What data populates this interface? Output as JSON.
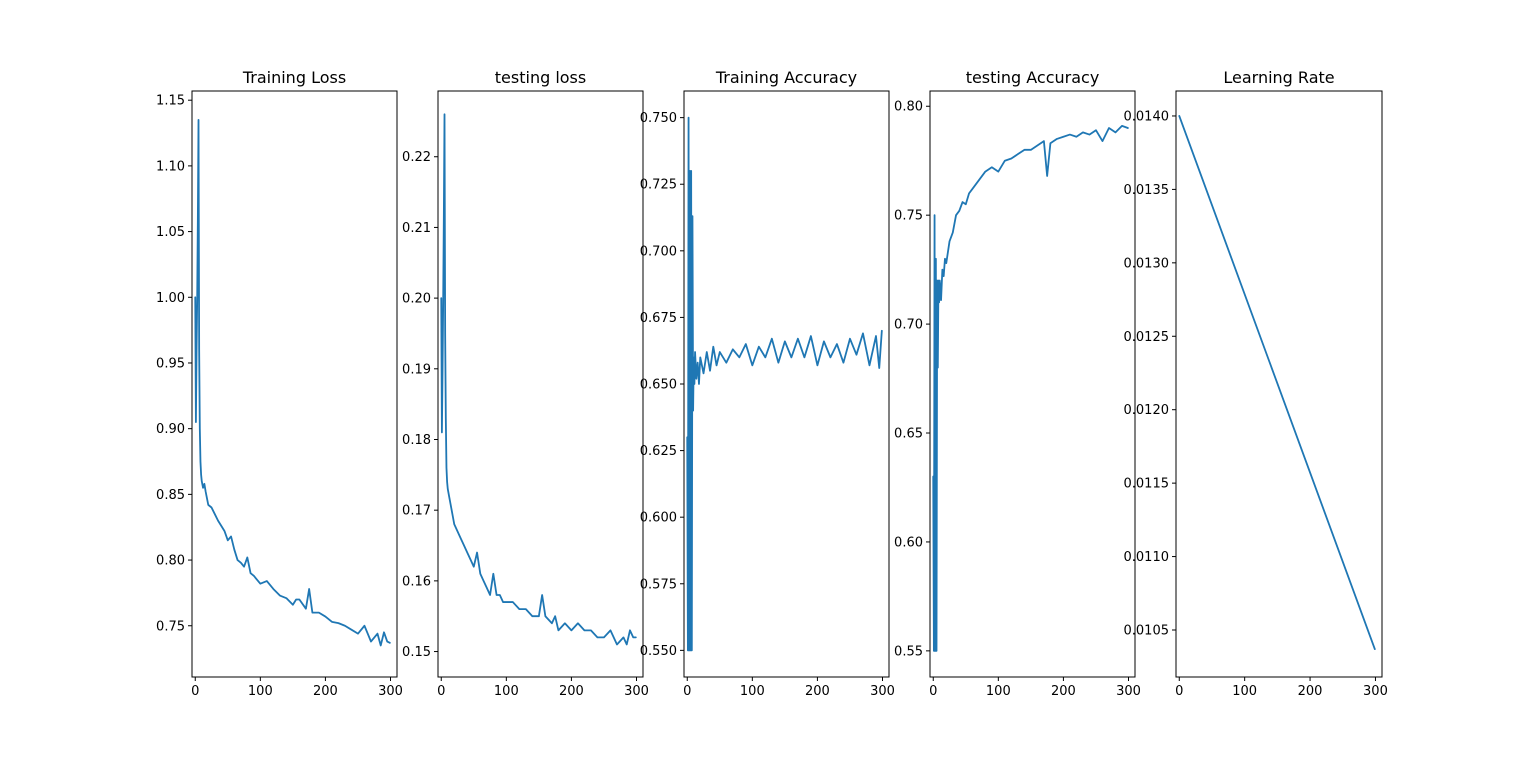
{
  "colors": {
    "series": "#1f77b4",
    "axes": "#000000",
    "background": "#ffffff"
  },
  "chart_data": [
    {
      "type": "line",
      "title": "Training Loss",
      "xlim": [
        -5,
        310
      ],
      "ylim": [
        0.711,
        1.157
      ],
      "xticks": [
        0,
        100,
        200,
        300
      ],
      "xtick_labels": [
        "0",
        "100",
        "200",
        "300"
      ],
      "yticks": [
        0.75,
        0.8,
        0.85,
        0.9,
        0.95,
        1.0,
        1.05,
        1.1,
        1.15
      ],
      "ytick_labels": [
        "0.75",
        "0.80",
        "0.85",
        "0.90",
        "0.95",
        "1.00",
        "1.05",
        "1.10",
        "1.15"
      ],
      "grid": false,
      "x": [
        0,
        1,
        2,
        3,
        4,
        5,
        6,
        7,
        8,
        9,
        10,
        12,
        14,
        16,
        18,
        20,
        25,
        30,
        35,
        40,
        45,
        50,
        55,
        60,
        65,
        70,
        75,
        80,
        85,
        90,
        95,
        100,
        110,
        120,
        130,
        140,
        150,
        155,
        160,
        170,
        175,
        180,
        190,
        200,
        210,
        220,
        230,
        240,
        250,
        260,
        270,
        280,
        285,
        290,
        295,
        299
      ],
      "values": [
        1.0,
        0.905,
        0.96,
        1.0,
        1.06,
        1.135,
        0.96,
        0.9,
        0.875,
        0.865,
        0.86,
        0.855,
        0.858,
        0.852,
        0.847,
        0.842,
        0.84,
        0.835,
        0.83,
        0.826,
        0.822,
        0.815,
        0.818,
        0.808,
        0.8,
        0.798,
        0.795,
        0.802,
        0.79,
        0.788,
        0.785,
        0.782,
        0.784,
        0.778,
        0.773,
        0.771,
        0.766,
        0.77,
        0.77,
        0.763,
        0.778,
        0.76,
        0.76,
        0.757,
        0.753,
        0.752,
        0.75,
        0.747,
        0.744,
        0.75,
        0.738,
        0.744,
        0.735,
        0.745,
        0.738,
        0.737
      ]
    },
    {
      "type": "line",
      "title": "testing loss",
      "xlim": [
        -5,
        310
      ],
      "ylim": [
        0.1464,
        0.2293
      ],
      "xticks": [
        0,
        100,
        200,
        300
      ],
      "xtick_labels": [
        "0",
        "100",
        "200",
        "300"
      ],
      "yticks": [
        0.15,
        0.16,
        0.17,
        0.18,
        0.19,
        0.2,
        0.21,
        0.22
      ],
      "ytick_labels": [
        "0.15",
        "0.16",
        "0.17",
        "0.18",
        "0.19",
        "0.20",
        "0.21",
        "0.22"
      ],
      "grid": false,
      "x": [
        0,
        1,
        2,
        3,
        4,
        5,
        6,
        7,
        8,
        9,
        10,
        12,
        14,
        16,
        18,
        20,
        25,
        30,
        35,
        40,
        45,
        50,
        55,
        60,
        65,
        70,
        75,
        80,
        85,
        90,
        95,
        100,
        110,
        120,
        130,
        140,
        150,
        155,
        160,
        170,
        175,
        180,
        190,
        200,
        210,
        220,
        230,
        240,
        250,
        260,
        270,
        280,
        285,
        290,
        295,
        299
      ],
      "values": [
        0.2,
        0.181,
        0.19,
        0.2,
        0.212,
        0.226,
        0.195,
        0.183,
        0.176,
        0.174,
        0.173,
        0.172,
        0.171,
        0.17,
        0.169,
        0.168,
        0.167,
        0.166,
        0.165,
        0.164,
        0.163,
        0.162,
        0.164,
        0.161,
        0.16,
        0.159,
        0.158,
        0.161,
        0.158,
        0.158,
        0.157,
        0.157,
        0.157,
        0.156,
        0.156,
        0.155,
        0.155,
        0.158,
        0.155,
        0.154,
        0.155,
        0.153,
        0.154,
        0.153,
        0.154,
        0.153,
        0.153,
        0.152,
        0.152,
        0.153,
        0.151,
        0.152,
        0.151,
        0.153,
        0.152,
        0.152
      ]
    },
    {
      "type": "line",
      "title": "Training Accuracy",
      "xlim": [
        -5,
        310
      ],
      "ylim": [
        0.54,
        0.76
      ],
      "xticks": [
        0,
        100,
        200,
        300
      ],
      "xtick_labels": [
        "0",
        "100",
        "200",
        "300"
      ],
      "yticks": [
        0.55,
        0.575,
        0.6,
        0.625,
        0.65,
        0.675,
        0.7,
        0.725,
        0.75
      ],
      "ytick_labels": [
        "0.550",
        "0.575",
        "0.600",
        "0.625",
        "0.650",
        "0.675",
        "0.700",
        "0.725",
        "0.750"
      ],
      "grid": false,
      "x": [
        0,
        1,
        2,
        3,
        4,
        5,
        6,
        7,
        8,
        9,
        10,
        11,
        12,
        14,
        16,
        18,
        20,
        25,
        30,
        35,
        40,
        45,
        50,
        60,
        70,
        80,
        90,
        100,
        110,
        120,
        130,
        140,
        150,
        160,
        170,
        180,
        190,
        200,
        210,
        220,
        230,
        240,
        250,
        260,
        270,
        280,
        290,
        295,
        299
      ],
      "values": [
        0.63,
        0.55,
        0.75,
        0.55,
        0.73,
        0.55,
        0.73,
        0.55,
        0.713,
        0.64,
        0.66,
        0.65,
        0.662,
        0.652,
        0.658,
        0.65,
        0.66,
        0.654,
        0.662,
        0.655,
        0.664,
        0.657,
        0.662,
        0.658,
        0.663,
        0.66,
        0.665,
        0.657,
        0.664,
        0.66,
        0.667,
        0.658,
        0.666,
        0.66,
        0.667,
        0.66,
        0.668,
        0.657,
        0.666,
        0.66,
        0.665,
        0.658,
        0.667,
        0.661,
        0.669,
        0.657,
        0.668,
        0.656,
        0.67
      ]
    },
    {
      "type": "line",
      "title": "testing Accuracy",
      "xlim": [
        -5,
        310
      ],
      "ylim": [
        0.538,
        0.807
      ],
      "xticks": [
        0,
        100,
        200,
        300
      ],
      "xtick_labels": [
        "0",
        "100",
        "200",
        "300"
      ],
      "yticks": [
        0.55,
        0.6,
        0.65,
        0.7,
        0.75,
        0.8
      ],
      "ytick_labels": [
        "0.55",
        "0.60",
        "0.65",
        "0.70",
        "0.75",
        "0.80"
      ],
      "grid": false,
      "x": [
        0,
        1,
        2,
        3,
        4,
        5,
        6,
        7,
        8,
        9,
        10,
        12,
        14,
        16,
        18,
        20,
        25,
        30,
        35,
        40,
        45,
        50,
        55,
        60,
        70,
        80,
        90,
        100,
        110,
        120,
        130,
        140,
        150,
        160,
        170,
        175,
        180,
        190,
        200,
        210,
        220,
        230,
        240,
        250,
        260,
        270,
        280,
        290,
        299
      ],
      "values": [
        0.63,
        0.55,
        0.75,
        0.55,
        0.73,
        0.55,
        0.72,
        0.68,
        0.72,
        0.71,
        0.72,
        0.711,
        0.725,
        0.722,
        0.73,
        0.728,
        0.738,
        0.742,
        0.75,
        0.752,
        0.756,
        0.755,
        0.76,
        0.762,
        0.766,
        0.77,
        0.772,
        0.77,
        0.775,
        0.776,
        0.778,
        0.78,
        0.78,
        0.782,
        0.784,
        0.768,
        0.783,
        0.785,
        0.786,
        0.787,
        0.786,
        0.788,
        0.787,
        0.789,
        0.784,
        0.79,
        0.788,
        0.791,
        0.79
      ]
    },
    {
      "type": "line",
      "title": "Learning Rate",
      "xlim": [
        -5,
        310
      ],
      "ylim": [
        0.01018,
        0.01417
      ],
      "xticks": [
        0,
        100,
        200,
        300
      ],
      "xtick_labels": [
        "0",
        "100",
        "200",
        "300"
      ],
      "yticks": [
        0.0105,
        0.011,
        0.0115,
        0.012,
        0.0125,
        0.013,
        0.0135,
        0.014
      ],
      "ytick_labels": [
        "0.0105",
        "0.0110",
        "0.0115",
        "0.0120",
        "0.0125",
        "0.0130",
        "0.0135",
        "0.0140"
      ],
      "grid": false,
      "x": [
        0,
        299
      ],
      "values": [
        0.014,
        0.01037
      ]
    }
  ]
}
